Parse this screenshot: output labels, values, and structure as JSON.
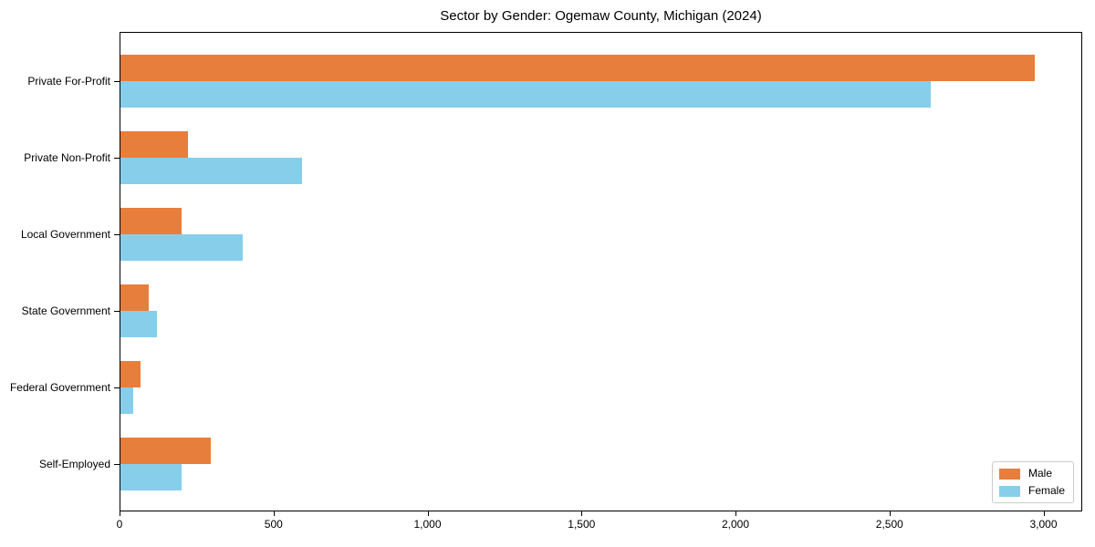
{
  "chart_data": {
    "type": "bar",
    "orientation": "horizontal",
    "title": "Sector by Gender: Ogemaw County, Michigan (2024)",
    "xlabel": "",
    "ylabel": "",
    "grid": false,
    "categories": [
      "Private For-Profit",
      "Private Non-Profit",
      "Local Government",
      "State Government",
      "Federal Government",
      "Self-Employed"
    ],
    "series": [
      {
        "name": "Male",
        "color": "#e87e3b",
        "values": [
          2970,
          220,
          197,
          93,
          66,
          294
        ]
      },
      {
        "name": "Female",
        "color": "#87ceeb",
        "values": [
          2632,
          590,
          396,
          118,
          42,
          199
        ]
      }
    ],
    "xlim": [
      0,
      3120
    ],
    "xticks": [
      0,
      500,
      1000,
      1500,
      2000,
      2500,
      3000
    ],
    "xtick_labels": [
      "0",
      "500",
      "1,000",
      "1,500",
      "2,000",
      "2,500",
      "3,000"
    ],
    "legend_position": "lower right"
  },
  "colors": {
    "spine": "#000000",
    "legend_border": "#cccccc",
    "background": "#ffffff"
  }
}
